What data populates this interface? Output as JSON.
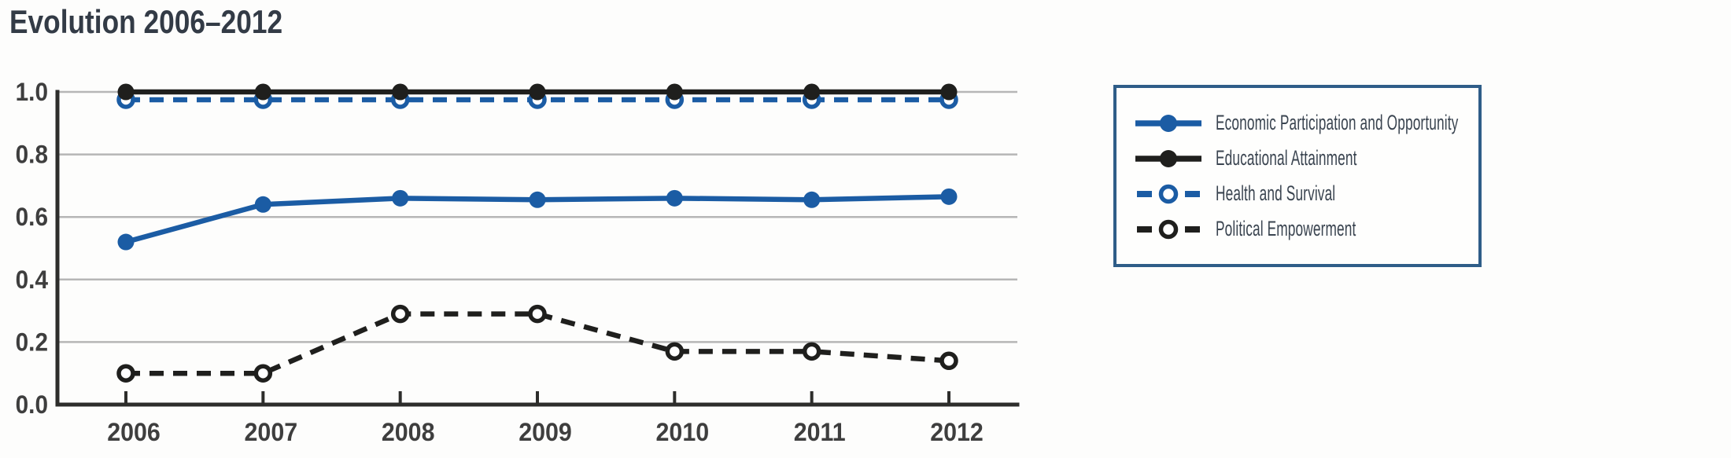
{
  "title": "Evolution 2006–2012",
  "colors": {
    "blue": "#1b5ca4",
    "black": "#1f1f1d",
    "grid": "#b6b6b6",
    "axis": "#2d2d2b",
    "axis_label_text": "#3e3e3e",
    "title_text": "#333b46",
    "legend_text": "#3a4450",
    "legend_border": "#2f5d88"
  },
  "chart_data": {
    "type": "line",
    "title": "Evolution 2006–2012",
    "x": [
      2006,
      2007,
      2008,
      2009,
      2010,
      2011,
      2012
    ],
    "xlabel": "",
    "ylabel": "",
    "ylim": [
      0.0,
      1.0
    ],
    "yticks": [
      0.0,
      0.2,
      0.4,
      0.6,
      0.8,
      1.0
    ],
    "grid": true,
    "legend_position": "right",
    "series": [
      {
        "name": "Economic Participation and Opportunity",
        "color": "#1b5ca4",
        "line_style": "solid",
        "marker": "filled",
        "values": [
          0.52,
          0.64,
          0.66,
          0.655,
          0.66,
          0.655,
          0.665
        ]
      },
      {
        "name": "Educational Attainment",
        "color": "#1f1f1d",
        "line_style": "solid",
        "marker": "filled",
        "values": [
          1.0,
          1.0,
          1.0,
          1.0,
          1.0,
          1.0,
          1.0
        ]
      },
      {
        "name": "Health and Survival",
        "color": "#1b5ca4",
        "line_style": "dashed",
        "marker": "open",
        "values": [
          0.975,
          0.975,
          0.975,
          0.975,
          0.975,
          0.975,
          0.975
        ]
      },
      {
        "name": "Political Empowerment",
        "color": "#1f1f1d",
        "line_style": "dashed",
        "marker": "open",
        "values": [
          0.1,
          0.1,
          0.29,
          0.29,
          0.17,
          0.17,
          0.14
        ]
      }
    ]
  }
}
